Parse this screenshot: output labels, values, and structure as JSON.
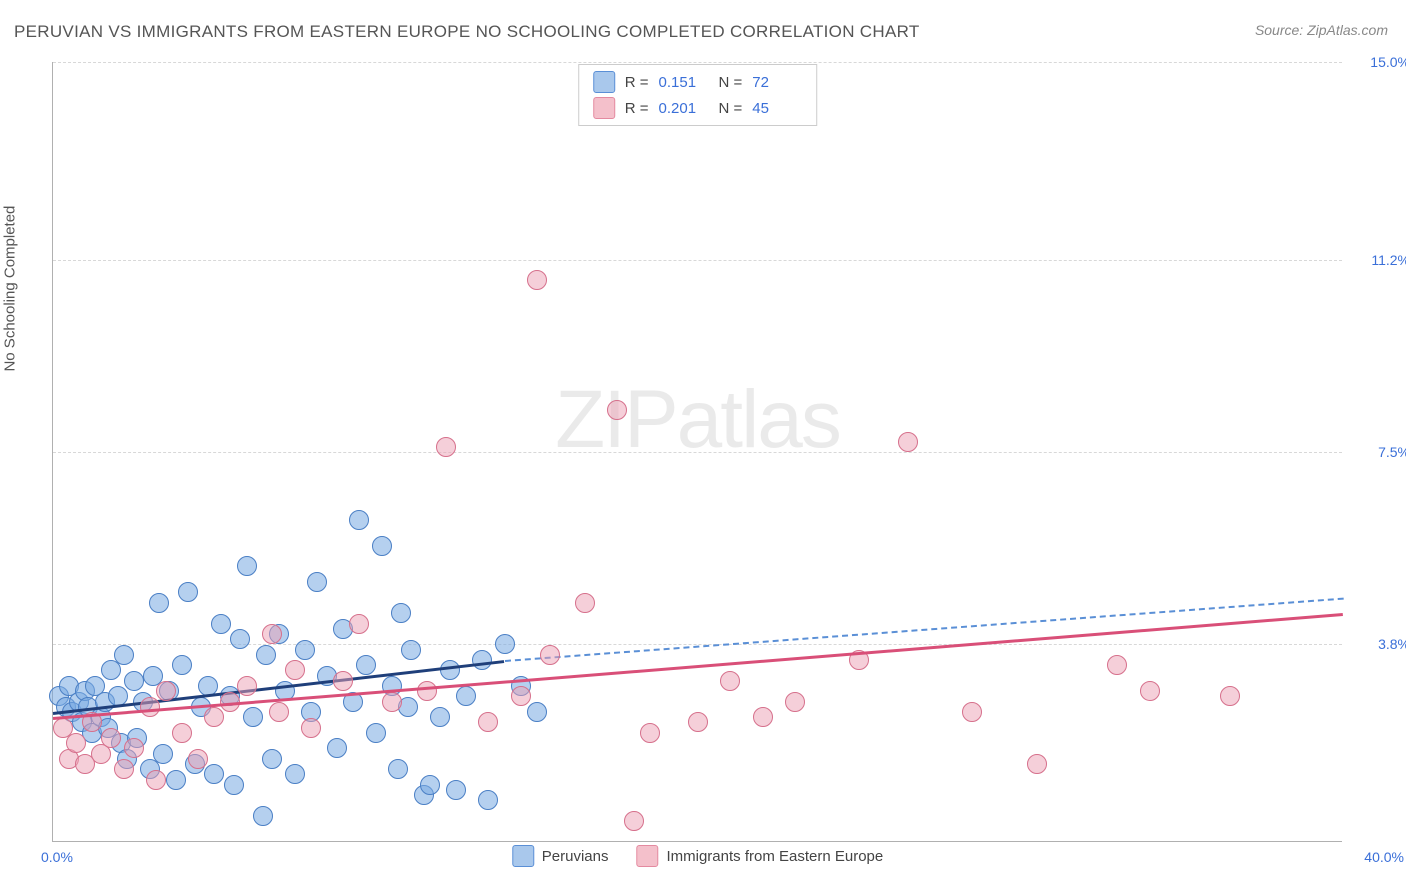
{
  "title": "PERUVIAN VS IMMIGRANTS FROM EASTERN EUROPE NO SCHOOLING COMPLETED CORRELATION CHART",
  "source": "Source: ZipAtlas.com",
  "y_axis_label": "No Schooling Completed",
  "watermark_bold": "ZIP",
  "watermark_light": "atlas",
  "xlim": [
    0,
    40
  ],
  "ylim": [
    0,
    15
  ],
  "x_ticks": [
    {
      "pos": 0,
      "label": "0.0%"
    },
    {
      "pos": 40,
      "label": "40.0%"
    }
  ],
  "y_ticks": [
    {
      "pos": 3.8,
      "label": "3.8%"
    },
    {
      "pos": 7.5,
      "label": "7.5%"
    },
    {
      "pos": 11.2,
      "label": "11.2%"
    },
    {
      "pos": 15.0,
      "label": "15.0%"
    }
  ],
  "legend_top": [
    {
      "swatch_fill": "#a9c8ec",
      "swatch_border": "#5a8fd6",
      "r_label": "R =",
      "r_val": "0.151",
      "n_label": "N =",
      "n_val": "72"
    },
    {
      "swatch_fill": "#f4c0cb",
      "swatch_border": "#e48aa0",
      "r_label": "R =",
      "r_val": "0.201",
      "n_label": "N =",
      "n_val": "45"
    }
  ],
  "legend_bottom": [
    {
      "swatch_fill": "#a9c8ec",
      "swatch_border": "#5a8fd6",
      "label": "Peruvians"
    },
    {
      "swatch_fill": "#f4c0cb",
      "swatch_border": "#e48aa0",
      "label": "Immigrants from Eastern Europe"
    }
  ],
  "series": [
    {
      "name": "peruvians",
      "fill": "rgba(120,170,225,0.55)",
      "stroke": "#4a7fc5",
      "marker_r": 10,
      "trend": {
        "x1": 0,
        "y1": 2.5,
        "x2": 14,
        "y2": 3.5,
        "color": "#1f3f7a",
        "width": 3,
        "dash_x2": 40,
        "dash_y2": 4.7,
        "dash_color": "#5a8fd6"
      },
      "points": [
        [
          0.2,
          2.8
        ],
        [
          0.4,
          2.6
        ],
        [
          0.5,
          3.0
        ],
        [
          0.6,
          2.5
        ],
        [
          0.8,
          2.7
        ],
        [
          0.9,
          2.3
        ],
        [
          1.0,
          2.9
        ],
        [
          1.1,
          2.6
        ],
        [
          1.2,
          2.1
        ],
        [
          1.3,
          3.0
        ],
        [
          1.5,
          2.4
        ],
        [
          1.6,
          2.7
        ],
        [
          1.7,
          2.2
        ],
        [
          1.8,
          3.3
        ],
        [
          2.0,
          2.8
        ],
        [
          2.1,
          1.9
        ],
        [
          2.2,
          3.6
        ],
        [
          2.3,
          1.6
        ],
        [
          2.5,
          3.1
        ],
        [
          2.6,
          2.0
        ],
        [
          2.8,
          2.7
        ],
        [
          3.0,
          1.4
        ],
        [
          3.1,
          3.2
        ],
        [
          3.3,
          4.6
        ],
        [
          3.4,
          1.7
        ],
        [
          3.6,
          2.9
        ],
        [
          3.8,
          1.2
        ],
        [
          4.0,
          3.4
        ],
        [
          4.2,
          4.8
        ],
        [
          4.4,
          1.5
        ],
        [
          4.6,
          2.6
        ],
        [
          4.8,
          3.0
        ],
        [
          5.0,
          1.3
        ],
        [
          5.2,
          4.2
        ],
        [
          5.5,
          2.8
        ],
        [
          5.6,
          1.1
        ],
        [
          5.8,
          3.9
        ],
        [
          6.0,
          5.3
        ],
        [
          6.2,
          2.4
        ],
        [
          6.5,
          0.5
        ],
        [
          6.6,
          3.6
        ],
        [
          6.8,
          1.6
        ],
        [
          7.0,
          4.0
        ],
        [
          7.2,
          2.9
        ],
        [
          7.5,
          1.3
        ],
        [
          7.8,
          3.7
        ],
        [
          8.0,
          2.5
        ],
        [
          8.2,
          5.0
        ],
        [
          8.5,
          3.2
        ],
        [
          8.8,
          1.8
        ],
        [
          9.0,
          4.1
        ],
        [
          9.3,
          2.7
        ],
        [
          9.5,
          6.2
        ],
        [
          9.7,
          3.4
        ],
        [
          10.0,
          2.1
        ],
        [
          10.2,
          5.7
        ],
        [
          10.5,
          3.0
        ],
        [
          10.7,
          1.4
        ],
        [
          10.8,
          4.4
        ],
        [
          11.0,
          2.6
        ],
        [
          11.1,
          3.7
        ],
        [
          11.5,
          0.9
        ],
        [
          11.7,
          1.1
        ],
        [
          12.0,
          2.4
        ],
        [
          12.3,
          3.3
        ],
        [
          12.5,
          1.0
        ],
        [
          12.8,
          2.8
        ],
        [
          13.3,
          3.5
        ],
        [
          13.5,
          0.8
        ],
        [
          14.0,
          3.8
        ],
        [
          14.5,
          3.0
        ],
        [
          15.0,
          2.5
        ]
      ]
    },
    {
      "name": "eastern-europe",
      "fill": "rgba(235,160,180,0.50)",
      "stroke": "#d6708c",
      "marker_r": 10,
      "trend": {
        "x1": 0,
        "y1": 2.4,
        "x2": 40,
        "y2": 4.4,
        "color": "#d94f78",
        "width": 3
      },
      "points": [
        [
          0.3,
          2.2
        ],
        [
          0.5,
          1.6
        ],
        [
          0.7,
          1.9
        ],
        [
          1.0,
          1.5
        ],
        [
          1.2,
          2.3
        ],
        [
          1.5,
          1.7
        ],
        [
          1.8,
          2.0
        ],
        [
          2.2,
          1.4
        ],
        [
          2.5,
          1.8
        ],
        [
          3.0,
          2.6
        ],
        [
          3.2,
          1.2
        ],
        [
          3.5,
          2.9
        ],
        [
          4.0,
          2.1
        ],
        [
          4.5,
          1.6
        ],
        [
          5.0,
          2.4
        ],
        [
          5.5,
          2.7
        ],
        [
          6.0,
          3.0
        ],
        [
          6.8,
          4.0
        ],
        [
          7.0,
          2.5
        ],
        [
          7.5,
          3.3
        ],
        [
          8.0,
          2.2
        ],
        [
          9.0,
          3.1
        ],
        [
          9.5,
          4.2
        ],
        [
          10.5,
          2.7
        ],
        [
          11.6,
          2.9
        ],
        [
          12.2,
          7.6
        ],
        [
          13.5,
          2.3
        ],
        [
          14.5,
          2.8
        ],
        [
          15.0,
          10.8
        ],
        [
          15.4,
          3.6
        ],
        [
          16.5,
          4.6
        ],
        [
          17.5,
          8.3
        ],
        [
          18.0,
          0.4
        ],
        [
          18.5,
          2.1
        ],
        [
          20.0,
          2.3
        ],
        [
          21.0,
          3.1
        ],
        [
          22.0,
          2.4
        ],
        [
          23.0,
          2.7
        ],
        [
          25.0,
          3.5
        ],
        [
          26.5,
          7.7
        ],
        [
          28.5,
          2.5
        ],
        [
          30.5,
          1.5
        ],
        [
          33.0,
          3.4
        ],
        [
          34.0,
          2.9
        ],
        [
          36.5,
          2.8
        ]
      ]
    }
  ],
  "grid_color": "#d8d8d8",
  "axis_color": "#b0b0b0",
  "background": "#ffffff"
}
